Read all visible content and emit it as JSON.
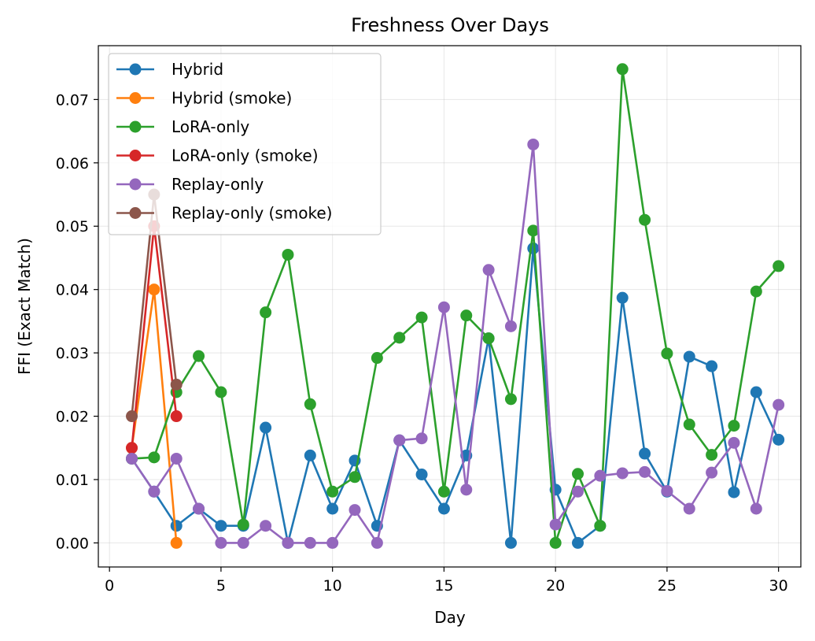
{
  "chart_data": {
    "type": "line",
    "title": "Freshness Over Days",
    "xlabel": "Day",
    "ylabel": "FFI (Exact Match)",
    "xlim": [
      -0.5,
      31.0
    ],
    "ylim": [
      -0.0038,
      0.0785
    ],
    "xticks": [
      0,
      5,
      10,
      15,
      20,
      25,
      30
    ],
    "xtick_labels": [
      "0",
      "5",
      "10",
      "15",
      "20",
      "25",
      "30"
    ],
    "yticks": [
      0.0,
      0.01,
      0.02,
      0.03,
      0.04,
      0.05,
      0.06,
      0.07
    ],
    "ytick_labels": [
      "0.00",
      "0.01",
      "0.02",
      "0.03",
      "0.04",
      "0.05",
      "0.06",
      "0.07"
    ],
    "grid": true,
    "legend_position": "upper-left",
    "series": [
      {
        "name": "Hybrid",
        "color": "#1f77b4",
        "x": [
          1,
          2,
          3,
          4,
          5,
          6,
          7,
          8,
          9,
          10,
          11,
          12,
          13,
          14,
          15,
          16,
          17,
          18,
          19,
          20,
          21,
          22,
          23,
          24,
          25,
          26,
          27,
          28,
          29,
          30
        ],
        "y": [
          0.0133,
          0.0081,
          0.0027,
          0.0054,
          0.0027,
          0.0027,
          0.0182,
          0.0,
          0.0138,
          0.0054,
          0.013,
          0.0027,
          0.0162,
          0.0108,
          0.0054,
          0.0138,
          0.0323,
          0.0,
          0.0465,
          0.0084,
          0.0,
          0.0027,
          0.0387,
          0.0141,
          0.0081,
          0.0294,
          0.0279,
          0.008,
          0.0238,
          0.0163
        ]
      },
      {
        "name": "Hybrid (smoke)",
        "color": "#ff7f0e",
        "x": [
          1,
          2,
          3
        ],
        "y": [
          0.015,
          0.04,
          0.0
        ]
      },
      {
        "name": "LoRA-only",
        "color": "#2ca02c",
        "x": [
          1,
          2,
          3,
          4,
          5,
          6,
          7,
          8,
          9,
          10,
          11,
          12,
          13,
          14,
          15,
          16,
          17,
          18,
          19,
          20,
          21,
          22,
          23,
          24,
          25,
          26,
          27,
          28,
          29,
          30
        ],
        "y": [
          0.0133,
          0.0135,
          0.0238,
          0.0295,
          0.0238,
          0.0029,
          0.0364,
          0.0455,
          0.0219,
          0.0081,
          0.0104,
          0.0292,
          0.0324,
          0.0356,
          0.0081,
          0.0359,
          0.0323,
          0.0227,
          0.0493,
          0.0,
          0.0109,
          0.0027,
          0.0748,
          0.051,
          0.0299,
          0.0187,
          0.0139,
          0.0185,
          0.0397,
          0.0437
        ]
      },
      {
        "name": "LoRA-only (smoke)",
        "color": "#d62728",
        "x": [
          1,
          2,
          3
        ],
        "y": [
          0.015,
          0.05,
          0.02
        ]
      },
      {
        "name": "Replay-only",
        "color": "#9467bd",
        "x": [
          1,
          2,
          3,
          4,
          5,
          6,
          7,
          8,
          9,
          10,
          11,
          12,
          13,
          14,
          15,
          16,
          17,
          18,
          19,
          20,
          21,
          22,
          23,
          24,
          25,
          26,
          27,
          28,
          29,
          30
        ],
        "y": [
          0.0133,
          0.0081,
          0.0133,
          0.0054,
          0.0,
          0.0,
          0.0027,
          0.0,
          0.0,
          0.0,
          0.0052,
          0.0,
          0.0162,
          0.0165,
          0.0372,
          0.0084,
          0.0431,
          0.0342,
          0.0629,
          0.0029,
          0.0081,
          0.0106,
          0.011,
          0.0112,
          0.0082,
          0.0054,
          0.0111,
          0.0158,
          0.0054,
          0.0218
        ]
      },
      {
        "name": "Replay-only (smoke)",
        "color": "#8c564b",
        "x": [
          1,
          2,
          3
        ],
        "y": [
          0.02,
          0.055,
          0.025
        ]
      }
    ]
  }
}
